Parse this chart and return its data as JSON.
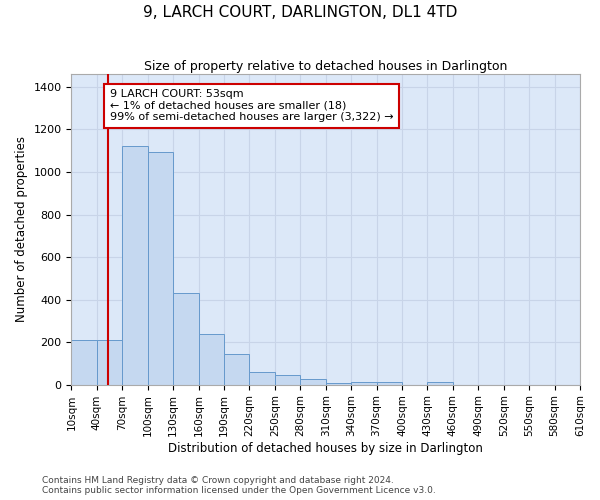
{
  "title": "9, LARCH COURT, DARLINGTON, DL1 4TD",
  "subtitle": "Size of property relative to detached houses in Darlington",
  "xlabel": "Distribution of detached houses by size in Darlington",
  "ylabel": "Number of detached properties",
  "bin_edges": [
    10,
    40,
    70,
    100,
    130,
    160,
    190,
    220,
    250,
    280,
    310,
    340,
    370,
    400,
    430,
    460,
    490,
    520,
    550,
    580,
    610
  ],
  "bar_heights": [
    210,
    210,
    1120,
    1095,
    430,
    240,
    145,
    60,
    45,
    25,
    10,
    15,
    15,
    0,
    14,
    0,
    0,
    0,
    0,
    0
  ],
  "bar_color": "#c5d8f0",
  "bar_edge_color": "#6699cc",
  "property_line_x": 53,
  "property_line_color": "#cc0000",
  "annotation_text": "9 LARCH COURT: 53sqm\n← 1% of detached houses are smaller (18)\n99% of semi-detached houses are larger (3,322) →",
  "annotation_box_color": "#ffffff",
  "annotation_box_edge_color": "#cc0000",
  "ylim": [
    0,
    1460
  ],
  "yticks": [
    0,
    200,
    400,
    600,
    800,
    1000,
    1200,
    1400
  ],
  "tick_labels": [
    "10sqm",
    "40sqm",
    "70sqm",
    "100sqm",
    "130sqm",
    "160sqm",
    "190sqm",
    "220sqm",
    "250sqm",
    "280sqm",
    "310sqm",
    "340sqm",
    "370sqm",
    "400sqm",
    "430sqm",
    "460sqm",
    "490sqm",
    "520sqm",
    "550sqm",
    "580sqm",
    "610sqm"
  ],
  "grid_color": "#c8d4e8",
  "background_color": "#dce8f8",
  "footer_line1": "Contains HM Land Registry data © Crown copyright and database right 2024.",
  "footer_line2": "Contains public sector information licensed under the Open Government Licence v3.0.",
  "title_fontsize": 11,
  "subtitle_fontsize": 9,
  "axis_label_fontsize": 8.5,
  "tick_fontsize": 7.5,
  "annotation_fontsize": 8,
  "footer_fontsize": 6.5
}
